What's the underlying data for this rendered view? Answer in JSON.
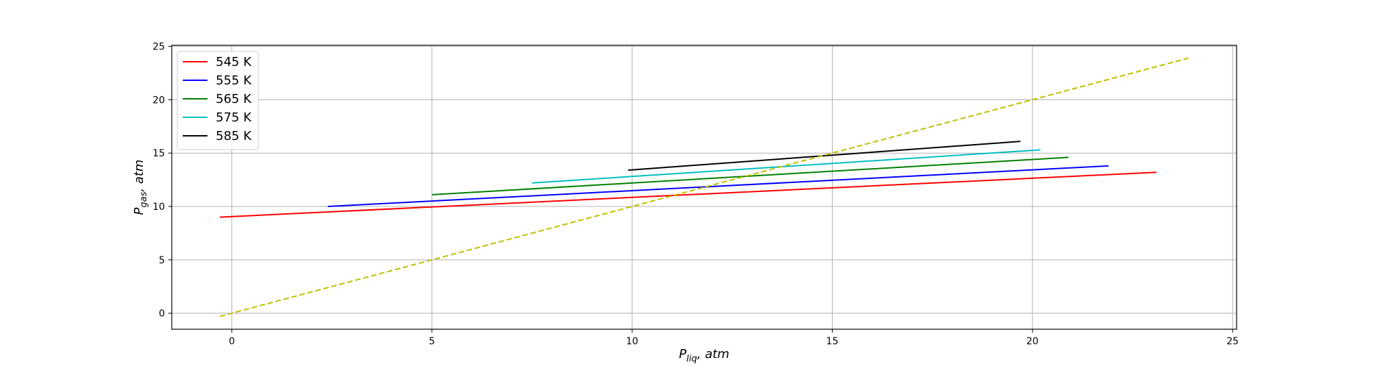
{
  "chart_data": {
    "type": "line",
    "title": "",
    "xlabel": {
      "main": "P",
      "sub": "liq",
      "rest": ", atm"
    },
    "ylabel": {
      "main": "P",
      "sub": "gas",
      "rest": ", atm"
    },
    "xlim": [
      -1.5,
      25.1
    ],
    "ylim": [
      -1.5,
      25.1
    ],
    "xticks": [
      0,
      5,
      10,
      15,
      20,
      25
    ],
    "yticks": [
      0,
      5,
      10,
      15,
      20,
      25
    ],
    "grid": true,
    "legend_position": "top-left",
    "series": [
      {
        "name": "545 K",
        "color": "#ff0000",
        "dash": "solid",
        "x": [
          -0.3,
          23.1
        ],
        "y": [
          9.0,
          13.2
        ]
      },
      {
        "name": "555 K",
        "color": "#0000ff",
        "dash": "solid",
        "x": [
          2.4,
          21.9
        ],
        "y": [
          10.0,
          13.8
        ]
      },
      {
        "name": "565 K",
        "color": "#008000",
        "dash": "solid",
        "x": [
          5.0,
          20.9
        ],
        "y": [
          11.1,
          14.6
        ]
      },
      {
        "name": "575 K",
        "color": "#00bfbf",
        "dash": "solid",
        "x": [
          7.5,
          20.2
        ],
        "y": [
          12.2,
          15.3
        ]
      },
      {
        "name": "585 K",
        "color": "#000000",
        "dash": "solid",
        "x": [
          9.9,
          19.7
        ],
        "y": [
          13.4,
          16.1
        ]
      },
      {
        "name": "",
        "color": "#bfbf00",
        "dash": "dashed",
        "x": [
          -0.3,
          23.9
        ],
        "y": [
          -0.3,
          23.9
        ]
      }
    ]
  }
}
